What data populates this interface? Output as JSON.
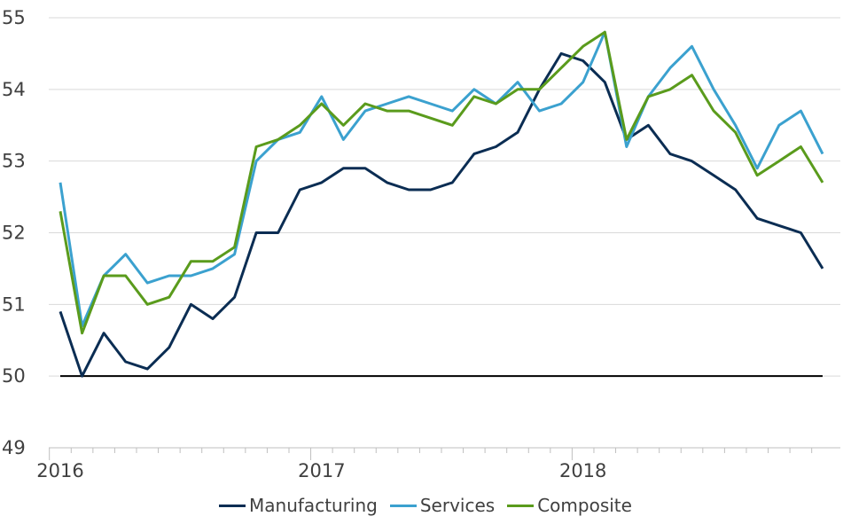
{
  "chart_data": {
    "type": "line",
    "title": "",
    "xlabel": "",
    "ylabel": "",
    "ylim": [
      49,
      55
    ],
    "yticks": [
      49,
      50,
      51,
      52,
      53,
      54,
      55
    ],
    "ytick_labels": [
      "49",
      "50",
      "51",
      "52",
      "53",
      "54",
      "55"
    ],
    "xtick_labels": [
      "2016",
      "2017",
      "2018"
    ],
    "xtick_months": [
      0,
      12,
      24
    ],
    "reference_line": 50,
    "grid": true,
    "legend_position": "bottom",
    "x": [
      "2016-01",
      "2016-02",
      "2016-03",
      "2016-04",
      "2016-05",
      "2016-06",
      "2016-07",
      "2016-08",
      "2016-09",
      "2016-10",
      "2016-11",
      "2016-12",
      "2017-01",
      "2017-02",
      "2017-03",
      "2017-04",
      "2017-05",
      "2017-06",
      "2017-07",
      "2017-08",
      "2017-09",
      "2017-10",
      "2017-11",
      "2017-12",
      "2018-01",
      "2018-02",
      "2018-03",
      "2018-04",
      "2018-05",
      "2018-06",
      "2018-07",
      "2018-08",
      "2018-09",
      "2018-10",
      "2018-11",
      "2018-12"
    ],
    "series": [
      {
        "name": "Manufacturing",
        "color": "#0b2d53",
        "values": [
          50.9,
          50.0,
          50.6,
          50.2,
          50.1,
          50.4,
          51.0,
          50.8,
          51.1,
          52.0,
          52.0,
          52.6,
          52.7,
          52.9,
          52.9,
          52.7,
          52.6,
          52.6,
          52.7,
          53.1,
          53.2,
          53.4,
          54.0,
          54.5,
          54.4,
          54.1,
          53.3,
          53.5,
          53.1,
          53.0,
          52.8,
          52.6,
          52.2,
          52.1,
          52.0,
          51.5
        ]
      },
      {
        "name": "Services",
        "color": "#3ba1cf",
        "values": [
          52.7,
          50.7,
          51.4,
          51.7,
          51.3,
          51.4,
          51.4,
          51.5,
          51.7,
          53.0,
          53.3,
          53.4,
          53.9,
          53.3,
          53.7,
          53.8,
          53.9,
          53.8,
          53.7,
          54.0,
          53.8,
          54.1,
          53.7,
          53.8,
          54.1,
          54.8,
          53.2,
          53.9,
          54.3,
          54.6,
          54.0,
          53.5,
          52.9,
          53.5,
          53.7,
          53.1
        ]
      },
      {
        "name": "Composite",
        "color": "#5a9b1c",
        "values": [
          52.3,
          50.6,
          51.4,
          51.4,
          51.0,
          51.1,
          51.6,
          51.6,
          51.8,
          53.2,
          53.3,
          53.5,
          53.8,
          53.5,
          53.8,
          53.7,
          53.7,
          53.6,
          53.5,
          53.9,
          53.8,
          54.0,
          54.0,
          54.3,
          54.6,
          54.8,
          53.3,
          53.9,
          54.0,
          54.2,
          53.7,
          53.4,
          52.8,
          53.0,
          53.2,
          52.7
        ]
      }
    ]
  }
}
